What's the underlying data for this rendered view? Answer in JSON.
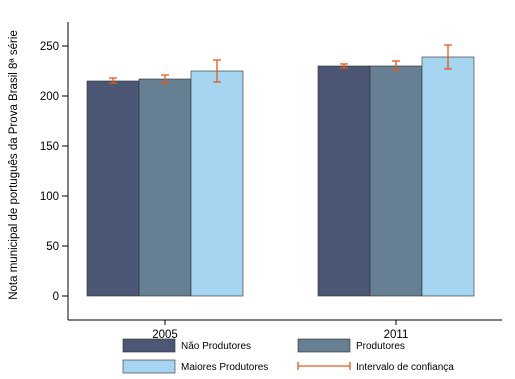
{
  "chart_data": {
    "type": "bar",
    "title": "",
    "xlabel": "",
    "ylabel": "Nota municipal de português da Prova Brasil 8ª série",
    "ylim": [
      0,
      275
    ],
    "yticks": [
      0,
      50,
      100,
      150,
      200,
      250
    ],
    "categories": [
      "2005",
      "2011"
    ],
    "series": [
      {
        "name": "Não Produtores",
        "color": "#4c5775",
        "values": [
          215,
          230
        ],
        "ci_low": [
          213,
          228
        ],
        "ci_high": [
          218,
          232
        ]
      },
      {
        "name": "Produtores",
        "color": "#667f92",
        "values": [
          217,
          230
        ],
        "ci_low": [
          213,
          226
        ],
        "ci_high": [
          221,
          235
        ]
      },
      {
        "name": "Maiores Produtores",
        "color": "#a6d5f2",
        "values": [
          225,
          239
        ],
        "ci_low": [
          214,
          227
        ],
        "ci_high": [
          236,
          251
        ]
      }
    ],
    "error_bar": {
      "name": "Intervalo de confiança",
      "color": "#e15a1e"
    },
    "grid": false,
    "legend_position": "bottom"
  }
}
